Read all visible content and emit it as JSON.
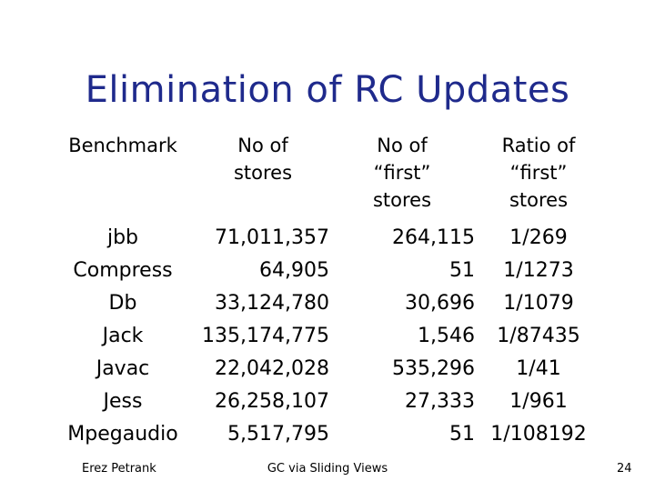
{
  "slide": {
    "title": "Elimination of RC Updates",
    "footer_left": "Erez Petrank",
    "footer_center": "GC via Sliding Views",
    "page_number": "24"
  },
  "table": {
    "headers": [
      [
        "Benchmark"
      ],
      [
        "No of",
        "stores"
      ],
      [
        "No of",
        "“first”",
        "stores"
      ],
      [
        "Ratio of",
        "“first”",
        "stores"
      ]
    ],
    "rows": [
      [
        "jbb",
        "71,011,357",
        "264,115",
        "1/269"
      ],
      [
        "Compress",
        "64,905",
        "51",
        "1/1273"
      ],
      [
        "Db",
        "33,124,780",
        "30,696",
        "1/1079"
      ],
      [
        "Jack",
        "135,174,775",
        "1,546",
        "1/87435"
      ],
      [
        "Javac",
        "22,042,028",
        "535,296",
        "1/41"
      ],
      [
        "Jess",
        "26,258,107",
        "27,333",
        "1/961"
      ],
      [
        "Mpegaudio",
        "5,517,795",
        "51",
        "1/108192"
      ]
    ]
  }
}
